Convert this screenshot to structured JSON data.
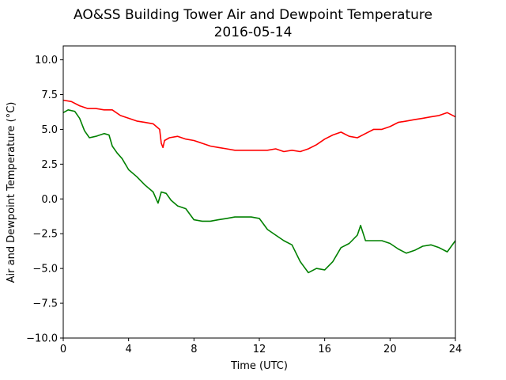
{
  "chart_data": {
    "type": "line",
    "title": "AO&SS Building Tower Air and Dewpoint Temperature",
    "subtitle": "2016-05-14",
    "xlabel": "Time (UTC)",
    "ylabel": "Air and Dewpoint Temperature (°C)",
    "xlim": [
      0,
      24
    ],
    "ylim": [
      -10,
      11
    ],
    "xticks": [
      0,
      4,
      8,
      12,
      16,
      20,
      24
    ],
    "yticks": [
      -10.0,
      -7.5,
      -5.0,
      -2.5,
      0.0,
      2.5,
      5.0,
      7.5,
      10.0
    ],
    "xtick_labels": [
      "0",
      "4",
      "8",
      "12",
      "16",
      "20",
      "24"
    ],
    "ytick_labels": [
      "−10.0",
      "−7.5",
      "−5.0",
      "−2.5",
      "0.0",
      "2.5",
      "5.0",
      "7.5",
      "10.0"
    ],
    "grid": false,
    "legend": "none",
    "series": [
      {
        "color": "#ff0000",
        "x": [
          0,
          0.5,
          1.0,
          1.5,
          2.0,
          2.5,
          3.0,
          3.5,
          4.0,
          4.5,
          5.0,
          5.5,
          5.9,
          6.0,
          6.1,
          6.2,
          6.5,
          7.0,
          7.5,
          8.0,
          8.5,
          9.0,
          9.5,
          10.0,
          10.5,
          11.0,
          11.5,
          12.0,
          12.5,
          13.0,
          13.5,
          14.0,
          14.5,
          15.0,
          15.5,
          16.0,
          16.5,
          17.0,
          17.5,
          18.0,
          18.5,
          19.0,
          19.5,
          20.0,
          20.5,
          21.0,
          21.5,
          22.0,
          22.5,
          23.0,
          23.5,
          24.0
        ],
        "values": [
          7.1,
          7.0,
          6.7,
          6.5,
          6.5,
          6.4,
          6.4,
          6.0,
          5.8,
          5.6,
          5.5,
          5.4,
          5.0,
          4.0,
          3.7,
          4.2,
          4.4,
          4.5,
          4.3,
          4.2,
          4.0,
          3.8,
          3.7,
          3.6,
          3.5,
          3.5,
          3.5,
          3.5,
          3.5,
          3.6,
          3.4,
          3.5,
          3.4,
          3.6,
          3.9,
          4.3,
          4.6,
          4.8,
          4.5,
          4.4,
          4.7,
          5.0,
          5.0,
          5.2,
          5.5,
          5.6,
          5.7,
          5.8,
          5.9,
          6.0,
          6.2,
          5.9
        ]
      },
      {
        "color": "#008000",
        "x": [
          0,
          0.3,
          0.7,
          1.0,
          1.3,
          1.6,
          2.0,
          2.5,
          2.8,
          3.0,
          3.3,
          3.6,
          4.0,
          4.5,
          5.0,
          5.5,
          5.8,
          6.0,
          6.3,
          6.6,
          7.0,
          7.5,
          8.0,
          8.5,
          9.0,
          9.5,
          10.0,
          10.5,
          11.0,
          11.5,
          12.0,
          12.5,
          13.0,
          13.5,
          14.0,
          14.5,
          15.0,
          15.5,
          16.0,
          16.5,
          17.0,
          17.5,
          18.0,
          18.2,
          18.5,
          19.0,
          19.5,
          20.0,
          20.5,
          21.0,
          21.5,
          22.0,
          22.5,
          23.0,
          23.5,
          24.0
        ],
        "values": [
          6.2,
          6.4,
          6.3,
          5.8,
          4.9,
          4.4,
          4.5,
          4.7,
          4.6,
          3.8,
          3.3,
          2.9,
          2.1,
          1.6,
          1.0,
          0.5,
          -0.3,
          0.5,
          0.4,
          -0.1,
          -0.5,
          -0.7,
          -1.5,
          -1.6,
          -1.6,
          -1.5,
          -1.4,
          -1.3,
          -1.3,
          -1.3,
          -1.4,
          -2.2,
          -2.6,
          -3.0,
          -3.3,
          -4.5,
          -5.3,
          -5.0,
          -5.1,
          -4.5,
          -3.5,
          -3.2,
          -2.6,
          -1.9,
          -3.0,
          -3.0,
          -3.0,
          -3.2,
          -3.6,
          -3.9,
          -3.7,
          -3.4,
          -3.3,
          -3.5,
          -3.8,
          -3.0
        ]
      }
    ]
  }
}
